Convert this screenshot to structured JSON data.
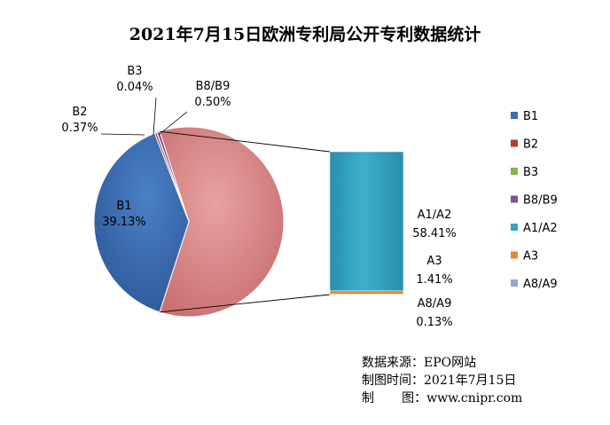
{
  "chart_data": {
    "type": "pie",
    "title": "2021年7月15日欧洲专利局公开专利数据统计",
    "pie_series": [
      {
        "name": "B1",
        "label": "B1",
        "value_label": "39.13%",
        "value": 39.13,
        "color": "#3B6DB3"
      },
      {
        "name": "B2",
        "label": "B2",
        "value_label": "0.37%",
        "value": 0.37,
        "color": "#B83A38"
      },
      {
        "name": "B3",
        "label": "B3",
        "value_label": "0.04%",
        "value": 0.04,
        "color": "#8DB04A"
      },
      {
        "name": "B8/B9",
        "label": "B8/B9",
        "value_label": "0.50%",
        "value": 0.5,
        "color": "#7A5597"
      }
    ],
    "bar_series": [
      {
        "name": "A1/A2",
        "label": "A1/A2",
        "value_label": "58.41%",
        "value": 58.41,
        "color": "#34A6C1"
      },
      {
        "name": "A3",
        "label": "A3",
        "value_label": "1.41%",
        "value": 1.41,
        "color": "#E8892E"
      },
      {
        "name": "A8/A9",
        "label": "A8/A9",
        "value_label": "0.13%",
        "value": 0.13,
        "color": "#93A9CF"
      }
    ],
    "other_slice_color": "#D98A8A",
    "legend_position": "right"
  },
  "source": {
    "line1": "数据来源：EPO网站",
    "line2": "制图时间：2021年7月15日",
    "line3": "制       图：www.cnipr.com"
  }
}
